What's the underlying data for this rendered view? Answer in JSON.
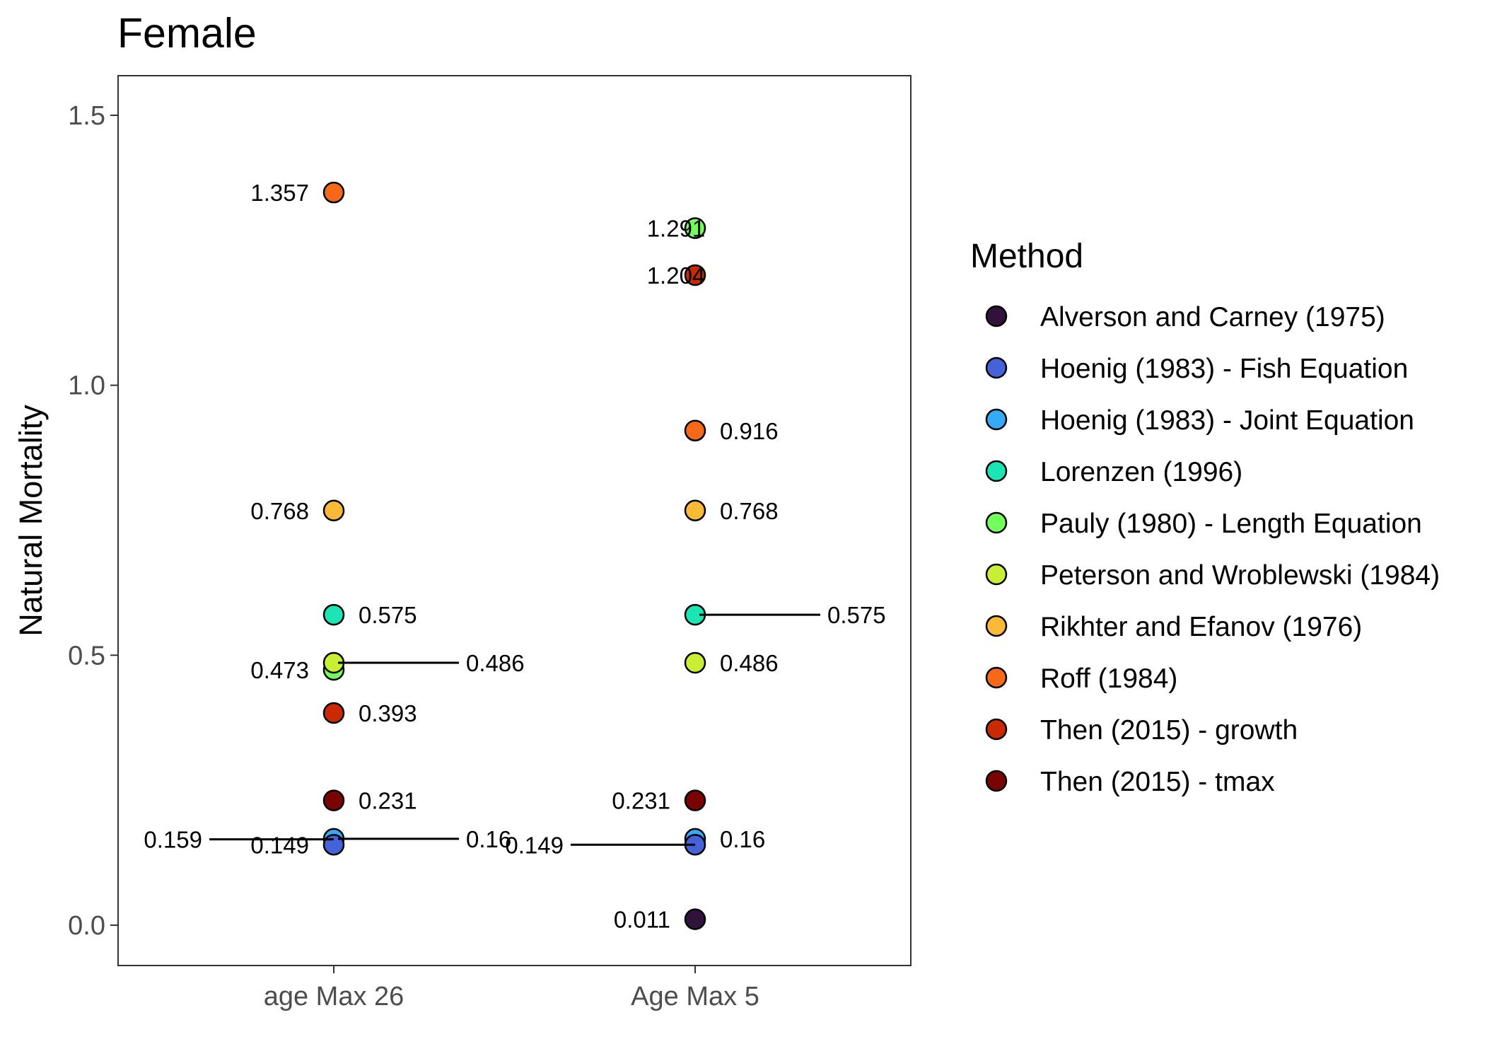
{
  "chart_data": {
    "type": "scatter",
    "title": "Female",
    "ylabel": "Natural Mortality",
    "xlabel": "",
    "categories": [
      "age Max 26",
      "Age Max 5"
    ],
    "ylim": [
      -0.07,
      1.575
    ],
    "yticks": [
      0.0,
      0.5,
      1.0,
      1.5
    ],
    "ytick_labels": [
      "0.0",
      "0.5",
      "1.0",
      "1.5"
    ],
    "grid": false,
    "legend": {
      "title": "Method",
      "position": "right",
      "items": [
        {
          "name": "Alverson and Carney (1975)",
          "color": "#30123b"
        },
        {
          "name": "Hoenig (1983) - Fish Equation",
          "color": "#4662d8"
        },
        {
          "name": "Hoenig (1983) - Joint Equation",
          "color": "#35abf8"
        },
        {
          "name": "Lorenzen (1996)",
          "color": "#1be5b5"
        },
        {
          "name": "Pauly (1980) - Length Equation",
          "color": "#74fe5d"
        },
        {
          "name": "Peterson and Wroblewski (1984)",
          "color": "#c9ef34"
        },
        {
          "name": "Rikhter and Efanov (1976)",
          "color": "#fbb938"
        },
        {
          "name": "Roff (1984)",
          "color": "#f56918"
        },
        {
          "name": "Then (2015) - growth",
          "color": "#c92903"
        },
        {
          "name": "Then (2015) - tmax",
          "color": "#7a0403"
        }
      ]
    },
    "points": [
      {
        "category": "age Max 26",
        "method": "Roff (1984)",
        "value": 1.357,
        "label": "1.357",
        "label_side": "left"
      },
      {
        "category": "age Max 26",
        "method": "Rikhter and Efanov (1976)",
        "value": 0.768,
        "label": "0.768",
        "label_side": "left"
      },
      {
        "category": "age Max 26",
        "method": "Lorenzen (1996)",
        "value": 0.575,
        "label": "0.575",
        "label_side": "right"
      },
      {
        "category": "age Max 26",
        "method": "Pauly (1980) - Length Equation",
        "value": 0.473,
        "label": "0.473",
        "label_side": "left"
      },
      {
        "category": "age Max 26",
        "method": "Peterson and Wroblewski (1984)",
        "value": 0.486,
        "label": "0.486",
        "label_side": "right",
        "leader": true
      },
      {
        "category": "age Max 26",
        "method": "Then (2015) - growth",
        "value": 0.393,
        "label": "0.393",
        "label_side": "right"
      },
      {
        "category": "age Max 26",
        "method": "Then (2015) - tmax",
        "value": 0.231,
        "label": "0.231",
        "label_side": "right"
      },
      {
        "category": "age Max 26",
        "method": "Hoenig (1983) - Joint Equation",
        "value": 0.16,
        "label": "0.16",
        "label_side": "right",
        "leader": true
      },
      {
        "category": "age Max 26",
        "method": "Hoenig (1983) - Fish Equation",
        "value": 0.149,
        "label": "0.149",
        "label_side": "left"
      },
      {
        "category": "age Max 26",
        "method": "Alverson and Carney (1975)",
        "value": 0.159,
        "label": "0.159",
        "label_side": "left",
        "leader": true,
        "label_only": true
      },
      {
        "category": "Age Max 5",
        "method": "Pauly (1980) - Length Equation",
        "value": 1.291,
        "label": "1.291",
        "label_side": "overlap"
      },
      {
        "category": "Age Max 5",
        "method": "Then (2015) - growth",
        "value": 1.204,
        "label": "1.204",
        "label_side": "overlap"
      },
      {
        "category": "Age Max 5",
        "method": "Roff (1984)",
        "value": 0.916,
        "label": "0.916",
        "label_side": "right"
      },
      {
        "category": "Age Max 5",
        "method": "Rikhter and Efanov (1976)",
        "value": 0.768,
        "label": "0.768",
        "label_side": "right"
      },
      {
        "category": "Age Max 5",
        "method": "Lorenzen (1996)",
        "value": 0.575,
        "label": "0.575",
        "label_side": "right",
        "leader": true
      },
      {
        "category": "Age Max 5",
        "method": "Peterson and Wroblewski (1984)",
        "value": 0.486,
        "label": "0.486",
        "label_side": "right"
      },
      {
        "category": "Age Max 5",
        "method": "Then (2015) - tmax",
        "value": 0.231,
        "label": "0.231",
        "label_side": "left"
      },
      {
        "category": "Age Max 5",
        "method": "Hoenig (1983) - Joint Equation",
        "value": 0.16,
        "label": "0.16",
        "label_side": "right"
      },
      {
        "category": "Age Max 5",
        "method": "Hoenig (1983) - Fish Equation",
        "value": 0.149,
        "label": "0.149",
        "label_side": "left",
        "leader": true
      },
      {
        "category": "Age Max 5",
        "method": "Alverson and Carney (1975)",
        "value": 0.011,
        "label": "0.011",
        "label_side": "left"
      }
    ]
  }
}
